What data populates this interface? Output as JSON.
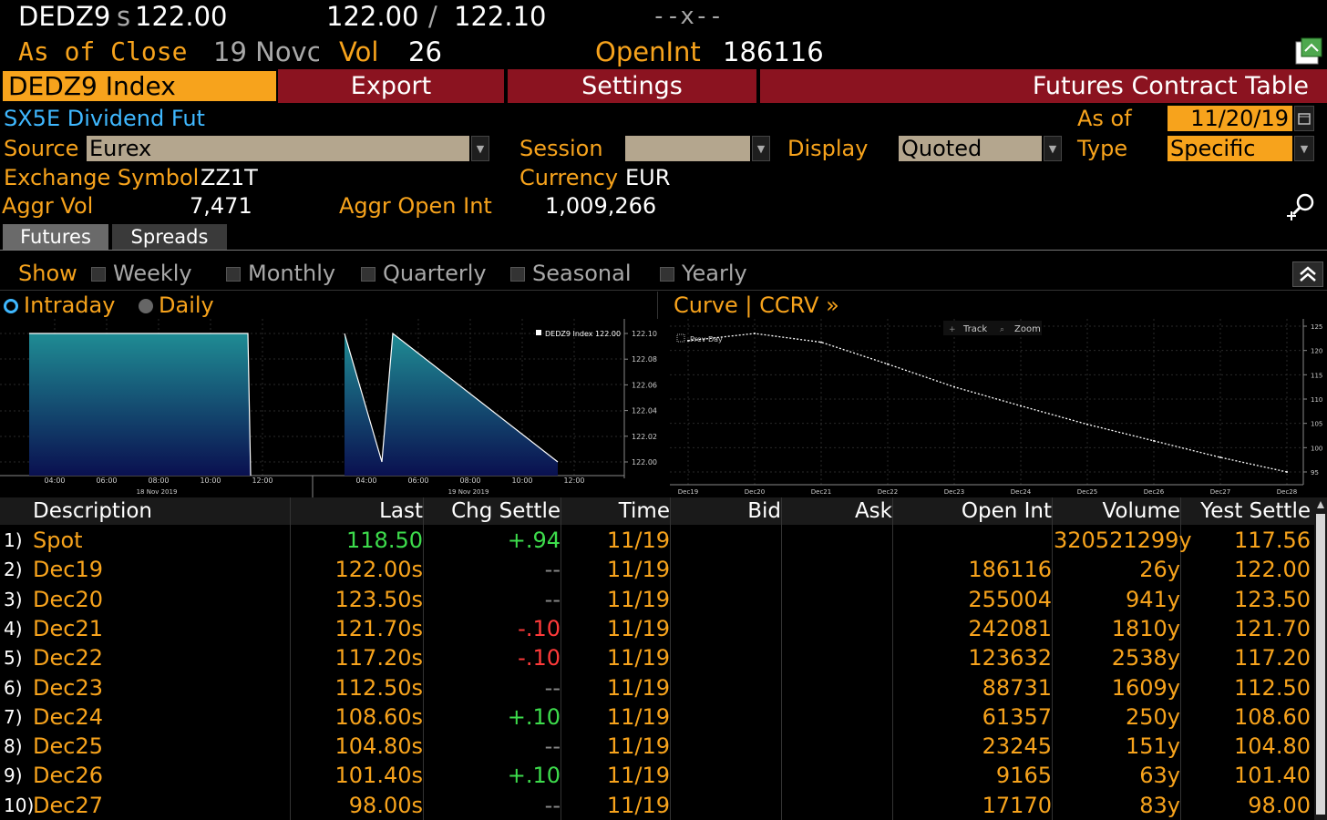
{
  "header": {
    "ticker": "DEDZ9",
    "settle_prefix": "s",
    "settle_price": "122.00",
    "bid": "122.00",
    "slash": "/",
    "ask": "122.10",
    "size": "--x--",
    "as_of_label": "As of Close",
    "as_of_date": "19 Novc",
    "vol_label": "Vol",
    "vol_value": "26",
    "openint_label": "OpenInt",
    "openint_value": "186116"
  },
  "menubar": {
    "index": "DEDZ9 Index",
    "export": "Export",
    "settings": "Settings",
    "title": "Futures Contract Table"
  },
  "info": {
    "name": "SX5E Dividend Fut",
    "as_of_label": "As of",
    "as_of_value": "11/20/19",
    "source_label": "Source",
    "source_value": "Eurex",
    "session_label": "Session",
    "session_value": "",
    "display_label": "Display",
    "display_value": "Quoted Value",
    "type_label": "Type",
    "type_value": "Specific",
    "exch_label": "Exchange Symbol",
    "exch_value": "ZZ1T",
    "currency_label": "Currency",
    "currency_value": "EUR",
    "aggr_vol_label": "Aggr Vol",
    "aggr_vol_value": "7,471",
    "aggr_oi_label": "Aggr Open Int",
    "aggr_oi_value": "1,009,266"
  },
  "tabs": [
    "Futures",
    "Spreads"
  ],
  "show": {
    "label": "Show",
    "options": [
      "Weekly",
      "Monthly",
      "Quarterly",
      "Seasonal",
      "Yearly"
    ]
  },
  "modes": [
    "Intraday",
    "Daily"
  ],
  "intraday_chart": {
    "legend": "DEDZ9 Index  122.00",
    "y_ticks": [
      "122.10",
      "122.08",
      "122.06",
      "122.04",
      "122.02",
      "122.00"
    ],
    "x_ticks_day1": [
      "04:00",
      "06:00",
      "08:00",
      "10:00",
      "12:00"
    ],
    "x_ticks_day2": [
      "04:00",
      "06:00",
      "08:00",
      "10:00",
      "12:00"
    ],
    "day1_label": "18 Nov 2019",
    "day2_label": "19 Nov 2019"
  },
  "curve_chart": {
    "title": "Curve | CCRV »",
    "track": "Track",
    "zoom": "Zoom",
    "prev_day": "Prev Day",
    "y_ticks": [
      "125",
      "120",
      "115",
      "110",
      "105",
      "100",
      "95"
    ],
    "x_ticks": [
      "Dec19",
      "Dec20",
      "Dec21",
      "Dec22",
      "Dec23",
      "Dec24",
      "Dec25",
      "Dec26",
      "Dec27",
      "Dec28"
    ]
  },
  "chart_data": [
    {
      "type": "area",
      "x": [
        "18 Nov 04:00",
        "18 Nov 12:00",
        "19 Nov 03:50",
        "19 Nov 04:30",
        "19 Nov 05:00",
        "19 Nov 10:30"
      ],
      "series": [
        {
          "values": [
            122.1,
            122.1,
            122.1,
            122.0,
            122.1,
            122.0
          ]
        }
      ],
      "ylim": [
        121.99,
        122.11
      ]
    },
    {
      "type": "line",
      "categories": [
        "Dec19",
        "Dec20",
        "Dec21",
        "Dec22",
        "Dec23",
        "Dec24",
        "Dec25",
        "Dec26",
        "Dec27",
        "Dec28"
      ],
      "series": [
        {
          "values": [
            122.0,
            123.5,
            121.7,
            117.2,
            112.5,
            108.6,
            104.8,
            101.4,
            98.0,
            95.0
          ]
        }
      ],
      "ylim": [
        93,
        127
      ]
    }
  ],
  "table": {
    "headers": [
      "Description",
      "Last",
      "Chg Settle",
      "Time",
      "Bid",
      "Ask",
      "Open Int",
      "Volume",
      "Yest Settle"
    ],
    "rows": [
      {
        "num": "1)",
        "desc": "Spot",
        "last": "118.50",
        "chg": "+.94",
        "chg_dir": "up",
        "time": "11/19",
        "bid": "",
        "ask": "",
        "oi": "",
        "vol": "320521299y",
        "yest": "117.56",
        "last_color": "green"
      },
      {
        "num": "2)",
        "desc": "Dec19",
        "last": "122.00s",
        "chg": "--",
        "chg_dir": "flat",
        "time": "11/19",
        "bid": "",
        "ask": "",
        "oi": "186116",
        "vol": "26y",
        "yest": "122.00",
        "last_color": "orange"
      },
      {
        "num": "3)",
        "desc": "Dec20",
        "last": "123.50s",
        "chg": "--",
        "chg_dir": "flat",
        "time": "11/19",
        "bid": "",
        "ask": "",
        "oi": "255004",
        "vol": "941y",
        "yest": "123.50",
        "last_color": "orange"
      },
      {
        "num": "4)",
        "desc": "Dec21",
        "last": "121.70s",
        "chg": "-.10",
        "chg_dir": "down",
        "time": "11/19",
        "bid": "",
        "ask": "",
        "oi": "242081",
        "vol": "1810y",
        "yest": "121.70",
        "last_color": "orange"
      },
      {
        "num": "5)",
        "desc": "Dec22",
        "last": "117.20s",
        "chg": "-.10",
        "chg_dir": "down",
        "time": "11/19",
        "bid": "",
        "ask": "",
        "oi": "123632",
        "vol": "2538y",
        "yest": "117.20",
        "last_color": "orange"
      },
      {
        "num": "6)",
        "desc": "Dec23",
        "last": "112.50s",
        "chg": "--",
        "chg_dir": "flat",
        "time": "11/19",
        "bid": "",
        "ask": "",
        "oi": "88731",
        "vol": "1609y",
        "yest": "112.50",
        "last_color": "orange"
      },
      {
        "num": "7)",
        "desc": "Dec24",
        "last": "108.60s",
        "chg": "+.10",
        "chg_dir": "up",
        "time": "11/19",
        "bid": "",
        "ask": "",
        "oi": "61357",
        "vol": "250y",
        "yest": "108.60",
        "last_color": "orange"
      },
      {
        "num": "8)",
        "desc": "Dec25",
        "last": "104.80s",
        "chg": "--",
        "chg_dir": "flat",
        "time": "11/19",
        "bid": "",
        "ask": "",
        "oi": "23245",
        "vol": "151y",
        "yest": "104.80",
        "last_color": "orange"
      },
      {
        "num": "9)",
        "desc": "Dec26",
        "last": "101.40s",
        "chg": "+.10",
        "chg_dir": "up",
        "time": "11/19",
        "bid": "",
        "ask": "",
        "oi": "9165",
        "vol": "63y",
        "yest": "101.40",
        "last_color": "orange"
      },
      {
        "num": "10)",
        "desc": "Dec27",
        "last": "98.00s",
        "chg": "--",
        "chg_dir": "flat",
        "time": "11/19",
        "bid": "",
        "ask": "",
        "oi": "17170",
        "vol": "83y",
        "yest": "98.00",
        "last_color": "orange"
      }
    ]
  },
  "colors": {
    "orange": "#f7a31c",
    "menu_red": "#8b1320",
    "green": "#3ddc4c",
    "red": "#ff3a3a",
    "cyan": "#3fb8ff",
    "teal": "#1f7f8a"
  }
}
